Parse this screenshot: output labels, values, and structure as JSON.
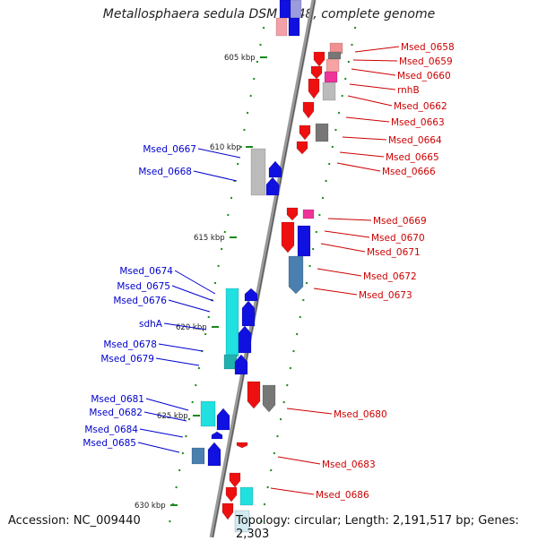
{
  "title": "Metallosphaera sedula DSM 5348, complete genome",
  "footer": {
    "accession": "Accession: NC_009440",
    "topology": "Topology: circular; Length: 2,191,517 bp; Genes: 2,303"
  },
  "colors": {
    "forward_label": "#0000cc",
    "reverse_label": "#cc0000",
    "backbone": "#888888",
    "tick": "#1a8a1a",
    "blue_gene": "#1010e0",
    "red_gene": "#ee1010",
    "cyan_gene": "#20e0e0",
    "gray_gene": "#777777",
    "steel_gene": "#4a7fb0",
    "pink_gene": "#ee3399"
  },
  "scale_ticks": [
    "605 kbp",
    "610 kbp",
    "615 kbp",
    "620 kbp",
    "625 kbp",
    "630 kbp"
  ],
  "reverse_genes": [
    "Msed_0658",
    "Msed_0659",
    "Msed_0660",
    "rnhB",
    "Msed_0662",
    "Msed_0663",
    "Msed_0664",
    "Msed_0665",
    "Msed_0666",
    "Msed_0669",
    "Msed_0670",
    "Msed_0671",
    "Msed_0672",
    "Msed_0673",
    "Msed_0680",
    "Msed_0683",
    "Msed_0686"
  ],
  "forward_genes": [
    "Msed_0667",
    "Msed_0668",
    "Msed_0674",
    "Msed_0675",
    "Msed_0676",
    "sdhA",
    "Msed_0678",
    "Msed_0679",
    "Msed_0681",
    "Msed_0682",
    "Msed_0684",
    "Msed_0685"
  ]
}
